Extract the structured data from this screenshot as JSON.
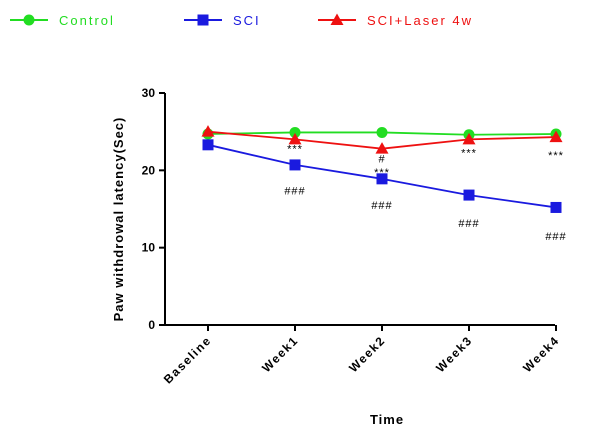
{
  "chart_data": {
    "type": "line",
    "title": "",
    "xlabel": "Time",
    "ylabel": "Paw withdrowal latency(Sec)",
    "categories": [
      "Baseline",
      "Week1",
      "Week2",
      "Week3",
      "Week4"
    ],
    "ylim": [
      0,
      30
    ],
    "yticks": [
      "0",
      "10",
      "20",
      "30"
    ],
    "grid": false,
    "legend_position": "top",
    "series": [
      {
        "name": "Control",
        "color": "#22dd22",
        "marker": "circle",
        "values": [
          24.7,
          24.9,
          24.9,
          24.6,
          24.7
        ]
      },
      {
        "name": "SCI",
        "color": "#1a1adf",
        "marker": "square",
        "values": [
          23.3,
          20.7,
          18.9,
          16.8,
          15.2
        ]
      },
      {
        "name": "SCI+Laser 4w",
        "color": "#ee1111",
        "marker": "triangle",
        "values": [
          25.0,
          24.0,
          22.8,
          24.0,
          24.3
        ]
      }
    ],
    "annotations": [
      {
        "text": "***",
        "category": "Week1",
        "value": 22.8
      },
      {
        "text": "###",
        "category": "Week1",
        "value": 17.4
      },
      {
        "text": "#",
        "category": "Week2",
        "value": 21.5
      },
      {
        "text": "***",
        "category": "Week2",
        "value": 19.8
      },
      {
        "text": "###",
        "category": "Week2",
        "value": 15.5
      },
      {
        "text": "***",
        "category": "Week3",
        "value": 22.3
      },
      {
        "text": "###",
        "category": "Week3",
        "value": 13.2
      },
      {
        "text": "***",
        "category": "Week4",
        "value": 22.0
      },
      {
        "text": "###",
        "category": "Week4",
        "value": 11.5
      }
    ]
  }
}
